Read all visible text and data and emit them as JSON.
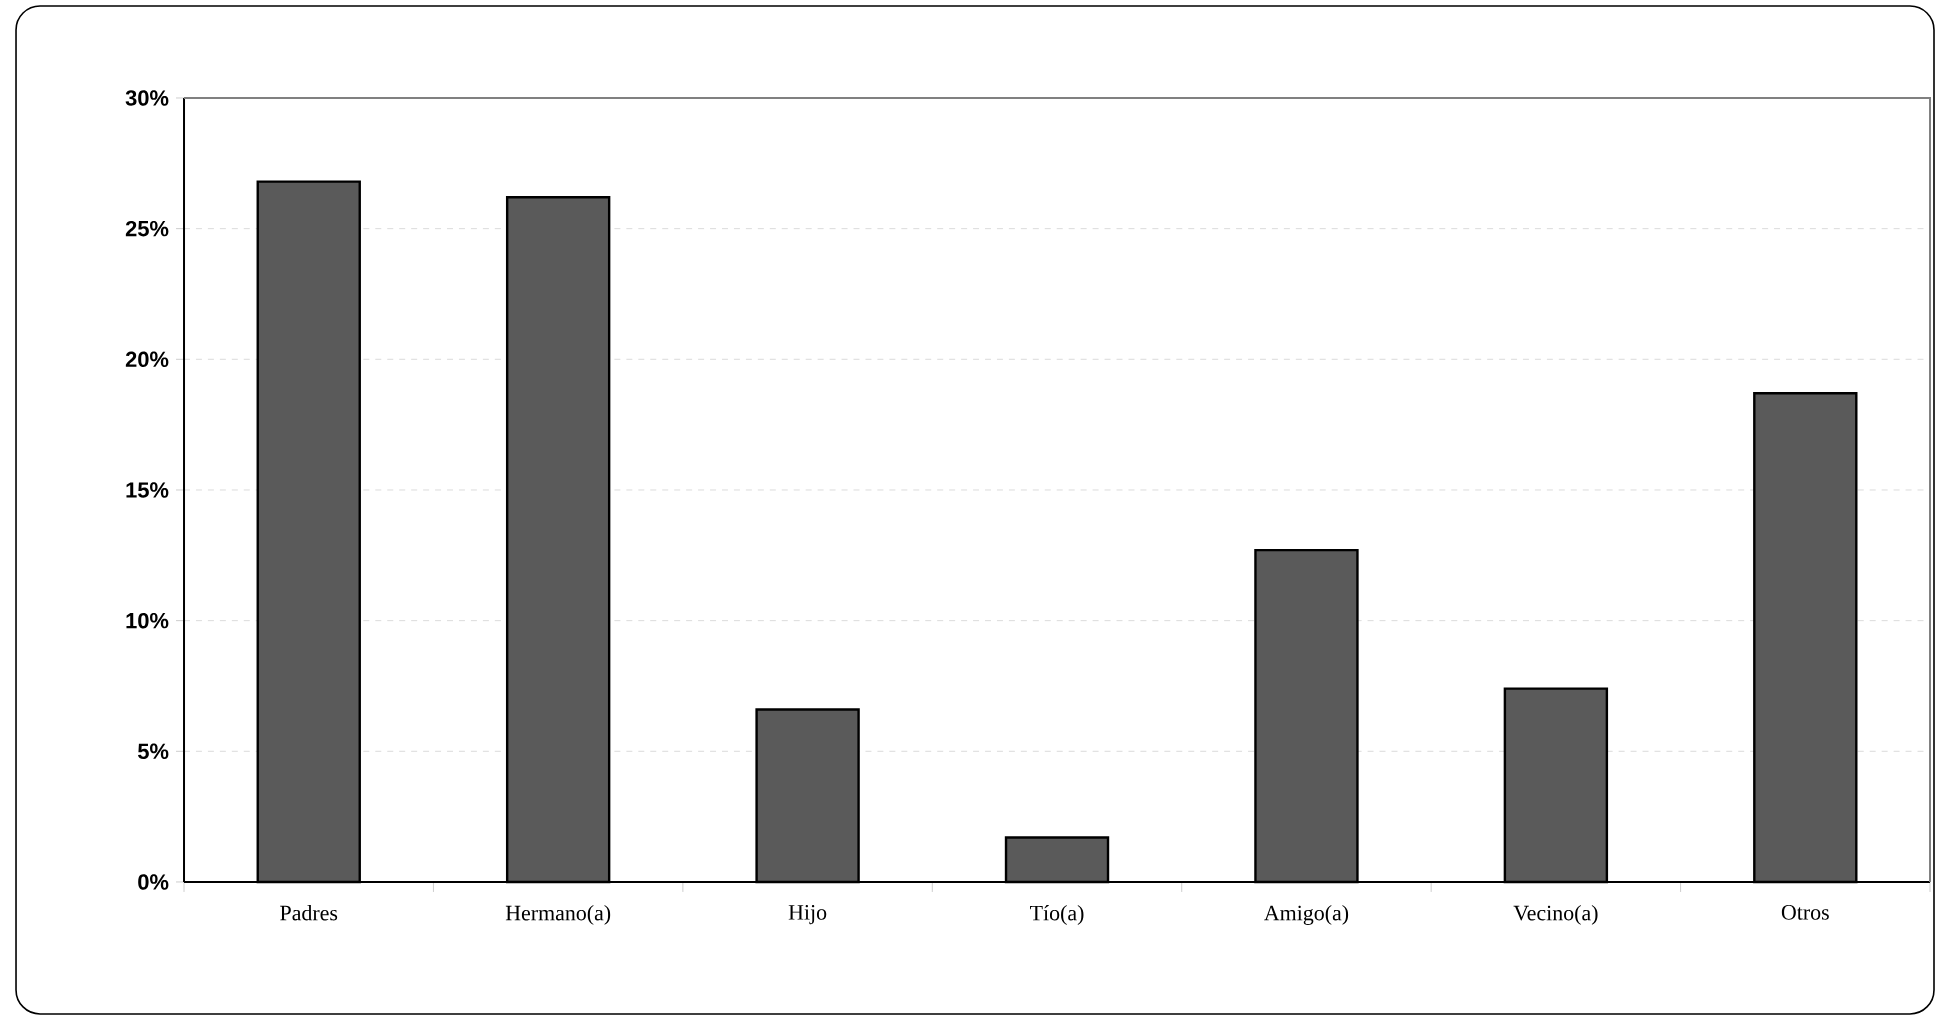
{
  "chart_data": {
    "type": "bar",
    "categories": [
      "Padres",
      "Hermano(a)",
      "Hijo",
      "Tío(a)",
      "Amigo(a)",
      "Vecino(a)",
      "Otros"
    ],
    "values": [
      26.8,
      26.2,
      6.6,
      1.7,
      12.7,
      7.4,
      18.7
    ],
    "color": "#5a5a5a",
    "ylim": [
      0,
      30
    ],
    "yticks": [
      {
        "value": 0,
        "label": "0%"
      },
      {
        "value": 5,
        "label": "5%"
      },
      {
        "value": 10,
        "label": "10%"
      },
      {
        "value": 15,
        "label": "15%"
      },
      {
        "value": 20,
        "label": "20%"
      },
      {
        "value": 25,
        "label": "25%"
      },
      {
        "value": 30,
        "label": "30%"
      }
    ],
    "grid": "y"
  }
}
